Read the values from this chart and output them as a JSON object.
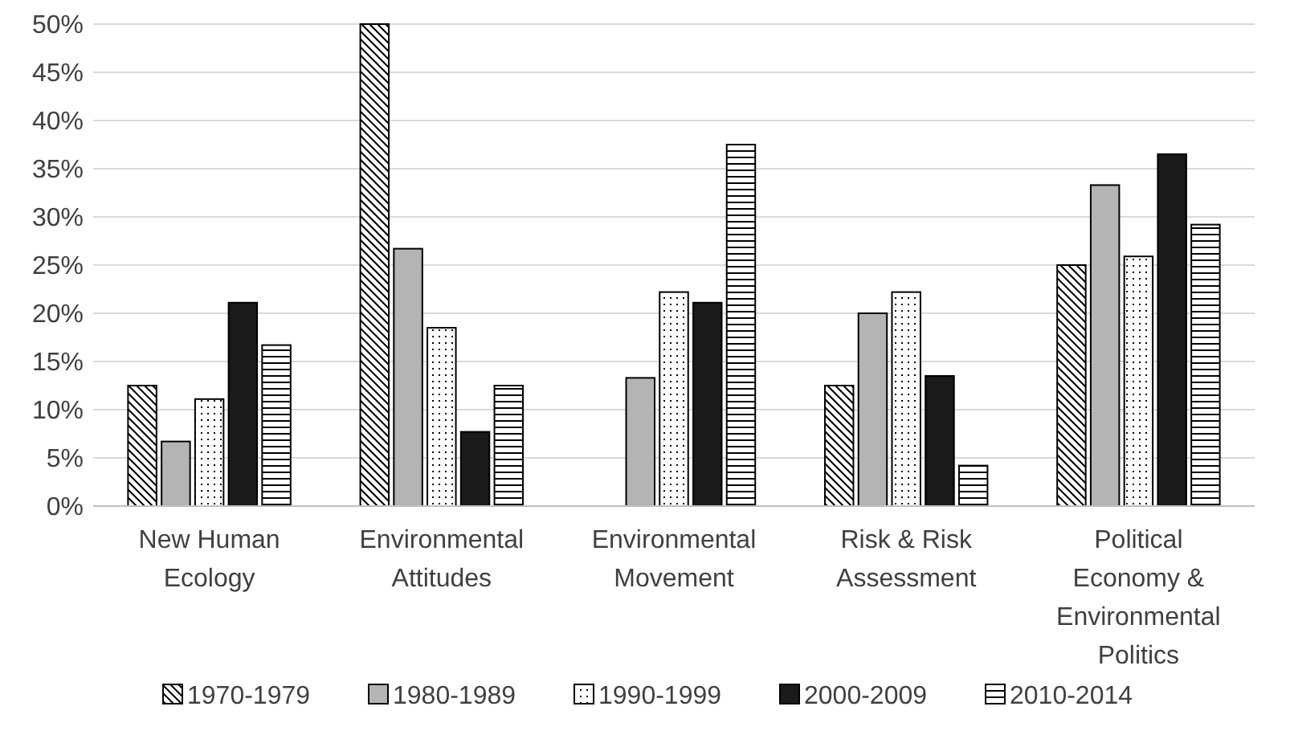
{
  "chart_data": {
    "type": "bar",
    "categories": [
      "New Human Ecology",
      "Environmental Attitudes",
      "Environmental Movement",
      "Risk & Risk Assessment",
      "Political Economy & Environmental Politics"
    ],
    "series": [
      {
        "name": "1970-1979",
        "color": "#000000",
        "values": [
          12.5,
          50,
          0,
          12.5,
          25
        ]
      },
      {
        "name": "1980-1989",
        "color": "#b4b4b4",
        "values": [
          6.7,
          26.7,
          13.3,
          20,
          33.3
        ]
      },
      {
        "name": "1990-1999",
        "color": "#000000",
        "values": [
          11.1,
          18.5,
          22.2,
          22.2,
          25.9
        ]
      },
      {
        "name": "2000-2009",
        "color": "#1a1a1a",
        "values": [
          21.1,
          7.7,
          21.1,
          13.5,
          36.5
        ]
      },
      {
        "name": "2010-2014",
        "color": "#000000",
        "values": [
          16.7,
          12.5,
          37.5,
          4.2,
          29.2
        ]
      }
    ],
    "ylim": [
      0,
      50
    ],
    "yticks": [
      {
        "value": 0,
        "label": "0%"
      },
      {
        "value": 5,
        "label": "5%"
      },
      {
        "value": 10,
        "label": "10%"
      },
      {
        "value": 15,
        "label": "15%"
      },
      {
        "value": 20,
        "label": "20%"
      },
      {
        "value": 25,
        "label": "25%"
      },
      {
        "value": 30,
        "label": "30%"
      },
      {
        "value": 35,
        "label": "35%"
      },
      {
        "value": 40,
        "label": "40%"
      },
      {
        "value": 45,
        "label": "45%"
      },
      {
        "value": 50,
        "label": "50%"
      }
    ],
    "grid": "y",
    "legend": "bottom"
  }
}
